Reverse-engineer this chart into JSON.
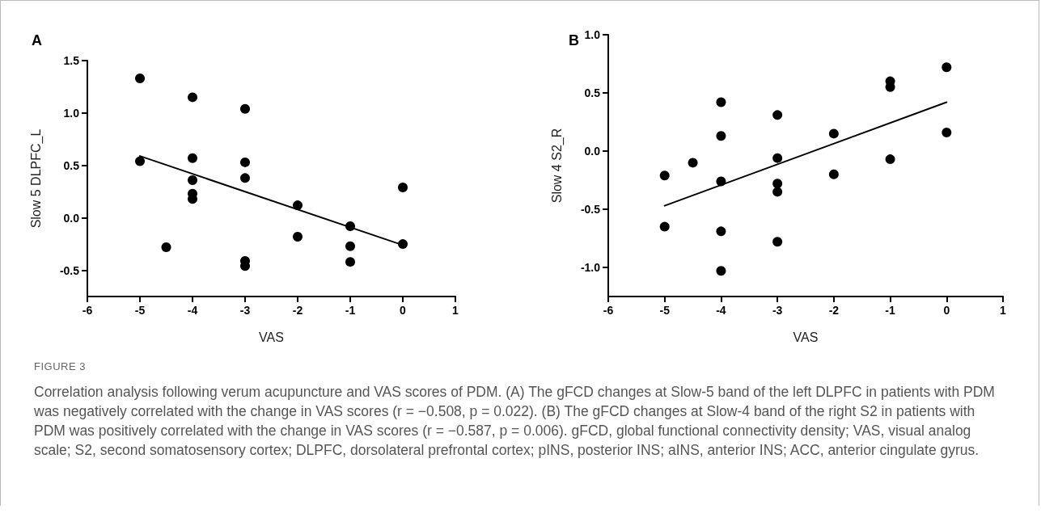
{
  "chart_data": [
    {
      "type": "scatter",
      "title": "A",
      "xlabel": "VAS",
      "ylabel": "Slow 5 DLPFC_L",
      "xlim": [
        -6,
        1
      ],
      "xticks": [
        -6,
        -5,
        -4,
        -3,
        -2,
        -1,
        0,
        1
      ],
      "ylim": [
        -0.75,
        1.5
      ],
      "yticks": [
        -0.5,
        {
          "value": 0,
          "label": "0.0"
        },
        0.5,
        {
          "value": 1,
          "label": "1.0"
        },
        1.5
      ],
      "grid": false,
      "series": [
        {
          "type": "scatter",
          "marker": "circle",
          "color": "#000000",
          "x": [
            -5,
            -5,
            -4.5,
            -4,
            -4,
            -4,
            -4,
            -4,
            -3,
            -3,
            -3,
            -3,
            -3,
            -2,
            -2,
            -1,
            -1,
            -1,
            0,
            0
          ],
          "values": [
            1.33,
            0.54,
            -0.28,
            1.15,
            0.57,
            0.36,
            0.23,
            0.18,
            1.04,
            0.53,
            0.38,
            -0.41,
            -0.46,
            0.12,
            -0.18,
            -0.08,
            -0.27,
            -0.42,
            0.29,
            -0.25
          ]
        },
        {
          "type": "line",
          "marker": "none",
          "color": "#000000",
          "x": [
            -5,
            0
          ],
          "values": [
            0.59,
            -0.26
          ]
        }
      ]
    },
    {
      "type": "scatter",
      "title": "B",
      "xlabel": "VAS",
      "ylabel": "Slow 4 S2_R",
      "xlim": [
        -6,
        1
      ],
      "xticks": [
        -6,
        -5,
        -4,
        -3,
        -2,
        -1,
        0,
        1
      ],
      "ylim": [
        -1.25,
        1.0
      ],
      "yticks": [
        {
          "value": -1,
          "label": "-1.0"
        },
        -0.5,
        {
          "value": 0,
          "label": "0.0"
        },
        0.5,
        {
          "value": 1,
          "label": "1.0"
        }
      ],
      "grid": false,
      "series": [
        {
          "type": "scatter",
          "marker": "circle",
          "color": "#000000",
          "x": [
            -5,
            -5,
            -4.5,
            -4,
            -4,
            -4,
            -4,
            -4,
            -3,
            -3,
            -3,
            -3,
            -3,
            -2,
            -2,
            -1,
            -1,
            -1,
            0,
            0
          ],
          "values": [
            -0.21,
            -0.65,
            -0.1,
            0.42,
            0.13,
            -0.26,
            -0.69,
            -1.03,
            0.31,
            -0.06,
            -0.28,
            -0.35,
            -0.78,
            0.15,
            -0.2,
            0.6,
            0.55,
            -0.07,
            0.72,
            0.16
          ]
        },
        {
          "type": "line",
          "marker": "none",
          "color": "#000000",
          "x": [
            -5,
            0
          ],
          "values": [
            -0.47,
            0.42
          ]
        }
      ],
      "annotations": [
        "FIGURE 3",
        "Correlation analysis following verum acupuncture and VAS scores of PDM. (A) The gFCD changes at Slow-5 band of the left DLPFC in patients with PDM was negatively correlated with the change in VAS scores (r = −0.508, p = 0.022). (B) The gFCD changes at Slow-4 band of the right S2 in patients with PDM was positively correlated with the change in VAS scores (r = −0.587, p = 0.006). gFCD, global functional connectivity density; VAS, visual analog scale; S2, second somatosensory cortex; DLPFC, dorsolateral prefrontal cortex; pINS, posterior INS; aINS, anterior INS; ACC, anterior cingulate gyrus."
      ]
    }
  ]
}
